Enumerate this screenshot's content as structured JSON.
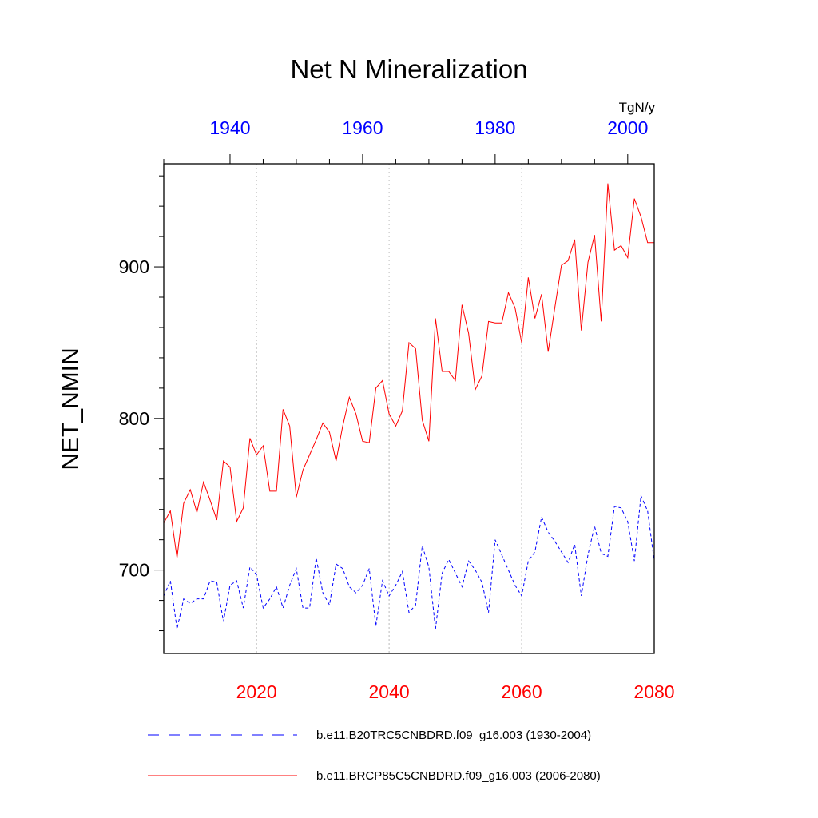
{
  "chart_data": {
    "type": "line",
    "title": "Net N Mineralization",
    "ylabel": "NET_NMIN",
    "units": "TgN/y",
    "ylim": [
      645,
      968
    ],
    "yticks": [
      700,
      800,
      900
    ],
    "ytick_labels": [
      "700",
      "800",
      "900"
    ],
    "bottom_axis": {
      "range": [
        2006,
        2080
      ],
      "ticks": [
        2020,
        2040,
        2060,
        2080
      ],
      "tick_labels": [
        "2020",
        "2040",
        "2060",
        "2080"
      ],
      "color": "#ff0000"
    },
    "top_axis": {
      "range": [
        1930,
        2004
      ],
      "ticks": [
        1940,
        1960,
        1980,
        2000
      ],
      "tick_labels": [
        "1940",
        "1960",
        "1980",
        "2000"
      ],
      "color": "#0000ff"
    },
    "series": [
      {
        "name": "b.e11.B20TRC5CNBDRD.f09_g16.003 (1930-2004)",
        "axis": "top",
        "color": "#0000ff",
        "dash": "dashed",
        "x_start": 1930,
        "values": [
          683,
          693,
          661,
          681,
          678,
          681,
          681,
          693,
          692,
          666,
          690,
          693,
          675,
          702,
          697,
          675,
          681,
          689,
          675,
          690,
          701,
          675,
          675,
          708,
          685,
          677,
          704,
          701,
          689,
          685,
          690,
          701,
          663,
          693,
          683,
          690,
          699,
          672,
          677,
          716,
          702,
          661,
          698,
          707,
          698,
          689,
          706,
          700,
          692,
          672,
          720,
          710,
          700,
          690,
          683,
          706,
          712,
          735,
          725,
          719,
          712,
          705,
          717,
          683,
          710,
          729,
          711,
          709,
          742,
          741,
          732,
          706,
          749,
          739,
          706
        ]
      },
      {
        "name": "b.e11.BRCP85C5CNBDRD.f09_g16.003 (2006-2080)",
        "axis": "bottom",
        "color": "#ff0000",
        "dash": "solid",
        "x_start": 2006,
        "values": [
          731,
          739,
          708,
          744,
          753,
          738,
          758,
          746,
          733,
          772,
          768,
          732,
          741,
          787,
          776,
          782,
          752,
          752,
          806,
          795,
          748,
          766,
          776,
          786,
          797,
          791,
          772,
          795,
          814,
          803,
          785,
          784,
          820,
          825,
          803,
          795,
          805,
          850,
          846,
          799,
          785,
          866,
          831,
          831,
          825,
          875,
          856,
          819,
          828,
          864,
          863,
          863,
          883,
          873,
          850,
          893,
          866,
          882,
          844,
          873,
          901,
          904,
          918,
          858,
          903,
          921,
          864,
          955,
          911,
          914,
          906,
          945,
          933,
          916,
          916
        ]
      }
    ]
  }
}
